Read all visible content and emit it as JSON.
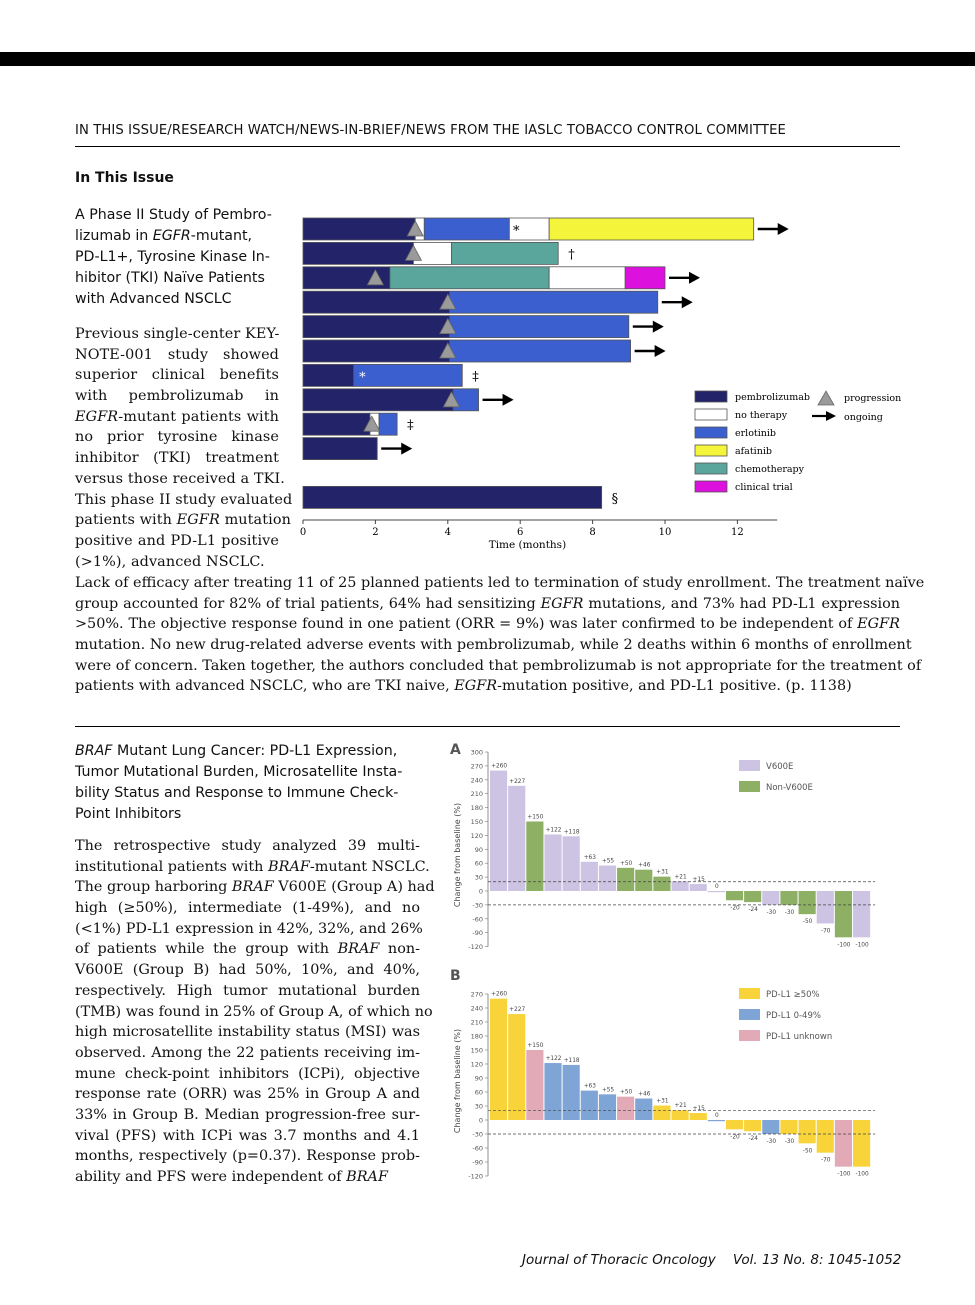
{
  "header": {
    "running_head": "IN THIS ISSUE/RESEARCH WATCH/NEWS-IN-BRIEF/NEWS FROM THE IASLC TOBACCO CONTROL COMMITTEE",
    "section": "In This Issue"
  },
  "article1": {
    "title_lines": [
      "A Phase II Study of Pembro-",
      "lizumab in EGFR-mutant,",
      "PD-L1+, Tyrosine Kinase In-",
      "hibitor (TKI) Naïve Patients",
      "with Advanced NSCLC"
    ],
    "narrow_lines": [
      "Previous single-center KEY-",
      "NOTE-001 study showed",
      "superior clinical benefits",
      "with pembrolizumab in",
      "EGFR-mutant patients with",
      "no prior tyrosine kinase",
      "inhibitor (TKI) treatment",
      "versus those received a TKI.",
      "This phase II study evaluated",
      "patients with EGFR mutation",
      "positive and PD-L1 positive",
      "(>1%), advanced NSCLC."
    ],
    "full_lines": [
      "Lack of efficacy after treating 11 of 25 planned patients led to termination of study enrollment. The treatment naïve",
      "group accounted for 82% of trial patients, 64% had sensitizing EGFR mutations, and 73% had PD-L1 expression",
      ">50%. The objective response found in one patient (ORR = 9%) was later confirmed to be independent of EGFR",
      "mutation. No new drug-related adverse events with pembrolizumab, while 2 deaths within 6 months of enrollment",
      "were of concern. Taken together, the authors concluded that pembrolizumab is not appropriate for the treatment of",
      "patients with advanced NSCLC, who are TKI naive, EGFR-mutation positive, and PD-L1 positive. (p. 1138)"
    ]
  },
  "article2": {
    "title_lines": [
      "BRAF Mutant Lung Cancer: PD-L1 Expression,",
      "Tumor Mutational Burden, Microsatellite Insta-",
      "bility Status and Response to Immune Check-",
      "Point Inhibitors"
    ],
    "body_lines": [
      "The retrospective study analyzed 39 multi-",
      "institutional patients with BRAF-mutant NSCLC.",
      "The group harboring BRAF V600E (Group A) had",
      "high (≥50%), intermediate (1-49%), and no",
      "(<1%) PD-L1 expression in 42%, 32%, and 26%",
      "of patients while the group with BRAF non-",
      "V600E (Group B) had 50%, 10%, and 40%,",
      "respectively. High tumor mutational burden",
      "(TMB) was found in 25% of Group A, of which no",
      "high microsatellite instability status (MSI) was",
      "observed. Among the 22 patients receiving im-",
      "mune check-point inhibitors (ICPi), objective",
      "response rate (ORR) was 25% in Group A and",
      "33% in Group B. Median progression-free sur-",
      "vival (PFS) with ICPi was 3.7 months and 4.1",
      "months, respectively (p=0.37). Response prob-",
      "ability and PFS were independent of BRAF"
    ]
  },
  "footer": {
    "journal": "Journal of Thoracic Oncology",
    "volume": "Vol. 13 No. 8: 1045-1052"
  },
  "chart_data": [
    {
      "type": "bar",
      "subtype": "swimmer",
      "xlabel": "Time (months)",
      "xlim": [
        0,
        12
      ],
      "xticks": [
        0,
        2,
        4,
        6,
        8,
        10,
        12
      ],
      "colors": {
        "pembrolizumab": "#23236a",
        "no therapy": "#ffffff",
        "erlotinib": "#3b5fcf",
        "afatinib": "#f4f43a",
        "chemotherapy": "#5aa59c",
        "clinical trial": "#dd11dd"
      },
      "legend": {
        "items": [
          "pembrolizumab",
          "no therapy",
          "erlotinib",
          "afatinib",
          "chemotherapy",
          "clinical trial"
        ],
        "progression": "progression",
        "ongoing": "ongoing"
      },
      "patients": [
        {
          "segments": [
            [
              "pembrolizumab",
              0,
              3.1
            ],
            [
              "no therapy",
              3.1,
              3.35
            ],
            [
              "erlotinib",
              3.35,
              5.7
            ],
            [
              "no therapy",
              5.7,
              6.8
            ],
            [
              "afatinib",
              6.8,
              12.45
            ]
          ],
          "progression": 3.1,
          "mark": "*",
          "mark_x": 5.8,
          "ongoing": true
        },
        {
          "segments": [
            [
              "pembrolizumab",
              0,
              3.05
            ],
            [
              "no therapy",
              3.05,
              4.1
            ],
            [
              "chemotherapy",
              4.1,
              7.05
            ]
          ],
          "progression": 3.05,
          "mark": "*",
          "mark_x": 3.2,
          "end_mark": "†"
        },
        {
          "segments": [
            [
              "pembrolizumab",
              0,
              2.4
            ],
            [
              "chemotherapy",
              2.4,
              6.8
            ],
            [
              "no therapy",
              6.8,
              8.9
            ],
            [
              "clinical trial",
              8.9,
              10.0
            ]
          ],
          "progression": 2.0,
          "ongoing": true
        },
        {
          "segments": [
            [
              "pembrolizumab",
              0,
              4.05
            ],
            [
              "erlotinib",
              4.05,
              9.8
            ]
          ],
          "progression": 4.0,
          "ongoing": true
        },
        {
          "segments": [
            [
              "pembrolizumab",
              0,
              4.05
            ],
            [
              "erlotinib",
              4.05,
              9.0
            ]
          ],
          "progression": 4.0,
          "ongoing": true
        },
        {
          "segments": [
            [
              "pembrolizumab",
              0,
              4.05
            ],
            [
              "erlotinib",
              4.05,
              9.05
            ]
          ],
          "progression": 4.0,
          "ongoing": true
        },
        {
          "segments": [
            [
              "pembrolizumab",
              0,
              1.4
            ],
            [
              "erlotinib",
              1.4,
              4.4
            ]
          ],
          "mark": "*",
          "mark_x": 1.55,
          "end_mark": "‡"
        },
        {
          "segments": [
            [
              "pembrolizumab",
              0,
              4.15
            ],
            [
              "erlotinib",
              4.15,
              4.85
            ]
          ],
          "progression": 4.1,
          "ongoing": true
        },
        {
          "segments": [
            [
              "pembrolizumab",
              0,
              1.85
            ],
            [
              "no therapy",
              1.85,
              2.1
            ],
            [
              "erlotinib",
              2.1,
              2.6
            ]
          ],
          "progression": 1.9,
          "end_mark": "‡"
        },
        {
          "segments": [
            [
              "pembrolizumab",
              0,
              2.05
            ]
          ],
          "ongoing": true
        },
        {
          "segments": []
        },
        {
          "segments": [
            [
              "pembrolizumab",
              0,
              8.25
            ]
          ],
          "end_mark": "§"
        }
      ]
    },
    {
      "type": "bar",
      "subtype": "waterfall",
      "panel": "A",
      "ylabel": "Change from baseline (%)",
      "ylim": [
        -120,
        300
      ],
      "yticks": [
        300,
        270,
        240,
        210,
        180,
        150,
        120,
        90,
        60,
        30,
        0,
        -30,
        -60,
        -90,
        -120
      ],
      "reference_lines": [
        20,
        -30
      ],
      "values": [
        260,
        227,
        150,
        122,
        118,
        63,
        55,
        50,
        46,
        31,
        21,
        15,
        0,
        -20,
        -24,
        -30,
        -30,
        -50,
        -70,
        -100,
        -100
      ],
      "labels": [
        "+260",
        "+227",
        "+150",
        "+122",
        "+118",
        "+63",
        "+55",
        "+50",
        "+46",
        "+31",
        "+21",
        "+15",
        "0",
        "-20",
        "-24",
        "-30",
        "-30",
        "-50",
        "-70",
        "-100",
        "-100"
      ],
      "groups": [
        "V600E",
        "V600E",
        "Non-V600E",
        "V600E",
        "V600E",
        "V600E",
        "V600E",
        "Non-V600E",
        "Non-V600E",
        "Non-V600E",
        "V600E",
        "V600E",
        "V600E",
        "Non-V600E",
        "Non-V600E",
        "V600E",
        "Non-V600E",
        "Non-V600E",
        "V600E",
        "Non-V600E",
        "V600E"
      ],
      "legend": [
        "V600E",
        "Non-V600E"
      ],
      "colors": {
        "V600E": "#cdc3e2",
        "Non-V600E": "#8db065"
      }
    },
    {
      "type": "bar",
      "subtype": "waterfall",
      "panel": "B",
      "ylabel": "Change from baseline (%)",
      "ylim": [
        -120,
        270
      ],
      "yticks": [
        270,
        240,
        210,
        180,
        150,
        120,
        90,
        60,
        30,
        0,
        -30,
        -60,
        -90,
        -120
      ],
      "reference_lines": [
        20,
        -30
      ],
      "values": [
        260,
        227,
        150,
        122,
        118,
        63,
        55,
        50,
        46,
        31,
        21,
        15,
        0,
        -20,
        -24,
        -30,
        -30,
        -50,
        -70,
        -100,
        -100
      ],
      "labels": [
        "+260",
        "+227",
        "+150",
        "+122",
        "+118",
        "+63",
        "+55",
        "+50",
        "+46",
        "+31",
        "+21",
        "+15",
        "0",
        "-20",
        "-24",
        "-30",
        "-30",
        "-50",
        "-70",
        "-100",
        "-100"
      ],
      "groups": [
        "PD-L1 ≥50%",
        "PD-L1 ≥50%",
        "PD-L1 unknown",
        "PD-L1 0-49%",
        "PD-L1 0-49%",
        "PD-L1 0-49%",
        "PD-L1 0-49%",
        "PD-L1 unknown",
        "PD-L1 0-49%",
        "PD-L1 ≥50%",
        "PD-L1 ≥50%",
        "PD-L1 ≥50%",
        "PD-L1 0-49%",
        "PD-L1 ≥50%",
        "PD-L1 ≥50%",
        "PD-L1 0-49%",
        "PD-L1 ≥50%",
        "PD-L1 ≥50%",
        "PD-L1 ≥50%",
        "PD-L1 unknown",
        "PD-L1 ≥50%"
      ],
      "legend": [
        "PD-L1 ≥50%",
        "PD-L1 0-49%",
        "PD-L1 unknown"
      ],
      "colors": {
        "PD-L1 ≥50%": "#f8d33a",
        "PD-L1 0-49%": "#7fa4d6",
        "PD-L1 unknown": "#e2a9b6"
      }
    }
  ]
}
